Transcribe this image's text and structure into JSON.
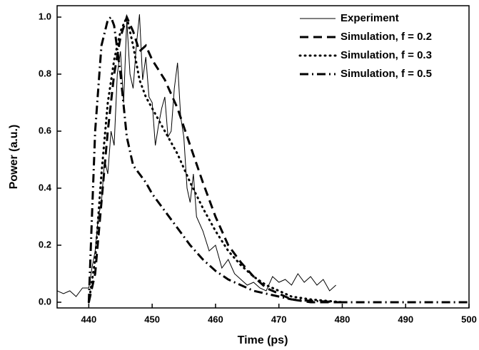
{
  "chart_data": {
    "type": "line",
    "x_label": "Time (ps)",
    "y_label": "Power (a.u.)",
    "xlim": [
      435,
      500
    ],
    "xticks": [
      440,
      450,
      460,
      470,
      480,
      490,
      500
    ],
    "ylim": [
      -0.02,
      1.04
    ],
    "yticks": [
      {
        "value": 0,
        "label": "0.0"
      },
      {
        "value": 0.2,
        "label": "0.2"
      },
      {
        "value": 0.4,
        "label": "0.4"
      },
      {
        "value": 0.6,
        "label": "0.6"
      },
      {
        "value": 0.8,
        "label": "0.8"
      },
      {
        "value": 1,
        "label": "1.0"
      }
    ],
    "legend": "upper right",
    "series": [
      {
        "name": "Experiment",
        "color": "#000000",
        "width": 1,
        "dash": "none",
        "x": [
          435,
          436,
          437,
          438,
          439,
          440,
          440.5,
          441,
          441.5,
          442,
          442.5,
          443,
          443.5,
          444,
          444.5,
          445,
          445.5,
          446,
          446.5,
          447,
          447.5,
          448,
          448.5,
          449,
          449.5,
          450,
          450.5,
          451,
          451.5,
          452,
          452.5,
          453,
          453.5,
          454,
          454.5,
          455,
          455.5,
          456,
          456.5,
          457,
          458,
          459,
          460,
          461,
          462,
          463,
          464,
          465,
          466,
          467,
          468,
          469,
          470,
          471,
          472,
          473,
          474,
          475,
          476,
          477,
          478,
          479
        ],
        "values": [
          0.04,
          0.03,
          0.04,
          0.02,
          0.05,
          0.05,
          0.12,
          0.18,
          0.3,
          0.35,
          0.5,
          0.45,
          0.6,
          0.55,
          0.8,
          0.88,
          0.7,
          0.99,
          0.8,
          0.75,
          0.9,
          1.01,
          0.78,
          0.86,
          0.72,
          0.7,
          0.55,
          0.62,
          0.68,
          0.72,
          0.58,
          0.6,
          0.75,
          0.84,
          0.65,
          0.58,
          0.4,
          0.35,
          0.45,
          0.3,
          0.25,
          0.18,
          0.2,
          0.12,
          0.15,
          0.1,
          0.08,
          0.06,
          0.07,
          0.05,
          0.04,
          0.09,
          0.07,
          0.08,
          0.06,
          0.1,
          0.07,
          0.09,
          0.06,
          0.08,
          0.04,
          0.06
        ]
      },
      {
        "name": "Simulation, f = 0.2",
        "color": "#000000",
        "width": 3,
        "dash": "12,7",
        "x": [
          440,
          441,
          442,
          443,
          444,
          445,
          446,
          447,
          448,
          449,
          450,
          452,
          454,
          456,
          458,
          460,
          462,
          464,
          466,
          468,
          470,
          472,
          475,
          480
        ],
        "values": [
          0,
          0.1,
          0.35,
          0.6,
          0.8,
          0.93,
          1.0,
          0.95,
          0.88,
          0.9,
          0.85,
          0.78,
          0.68,
          0.55,
          0.42,
          0.3,
          0.2,
          0.14,
          0.09,
          0.05,
          0.03,
          0.01,
          0,
          0
        ]
      },
      {
        "name": "Simulation, f = 0.3",
        "color": "#000000",
        "width": 3,
        "dash": "1,6",
        "x": [
          440,
          441,
          442,
          443,
          444,
          445,
          446,
          447,
          448,
          449,
          450,
          452,
          454,
          456,
          458,
          460,
          462,
          464,
          466,
          468,
          470,
          472,
          475,
          480
        ],
        "values": [
          0,
          0.15,
          0.45,
          0.7,
          0.85,
          0.95,
          1.0,
          0.9,
          0.78,
          0.72,
          0.68,
          0.6,
          0.52,
          0.42,
          0.33,
          0.25,
          0.18,
          0.13,
          0.09,
          0.06,
          0.04,
          0.02,
          0.01,
          0
        ]
      },
      {
        "name": "Simulation, f = 0.5",
        "color": "#000000",
        "width": 3,
        "dash": "12,5,2,5",
        "x": [
          440,
          440.5,
          441,
          442,
          443,
          443.5,
          444,
          445,
          446,
          447,
          448,
          449,
          450,
          452,
          454,
          456,
          458,
          460,
          462,
          464,
          466,
          468,
          470,
          472,
          475,
          480,
          490,
          500
        ],
        "values": [
          0,
          0.3,
          0.6,
          0.9,
          0.99,
          1.0,
          0.97,
          0.8,
          0.58,
          0.48,
          0.45,
          0.42,
          0.38,
          0.32,
          0.26,
          0.2,
          0.15,
          0.11,
          0.08,
          0.06,
          0.04,
          0.03,
          0.02,
          0.01,
          0.005,
          0,
          0,
          0
        ]
      }
    ]
  }
}
